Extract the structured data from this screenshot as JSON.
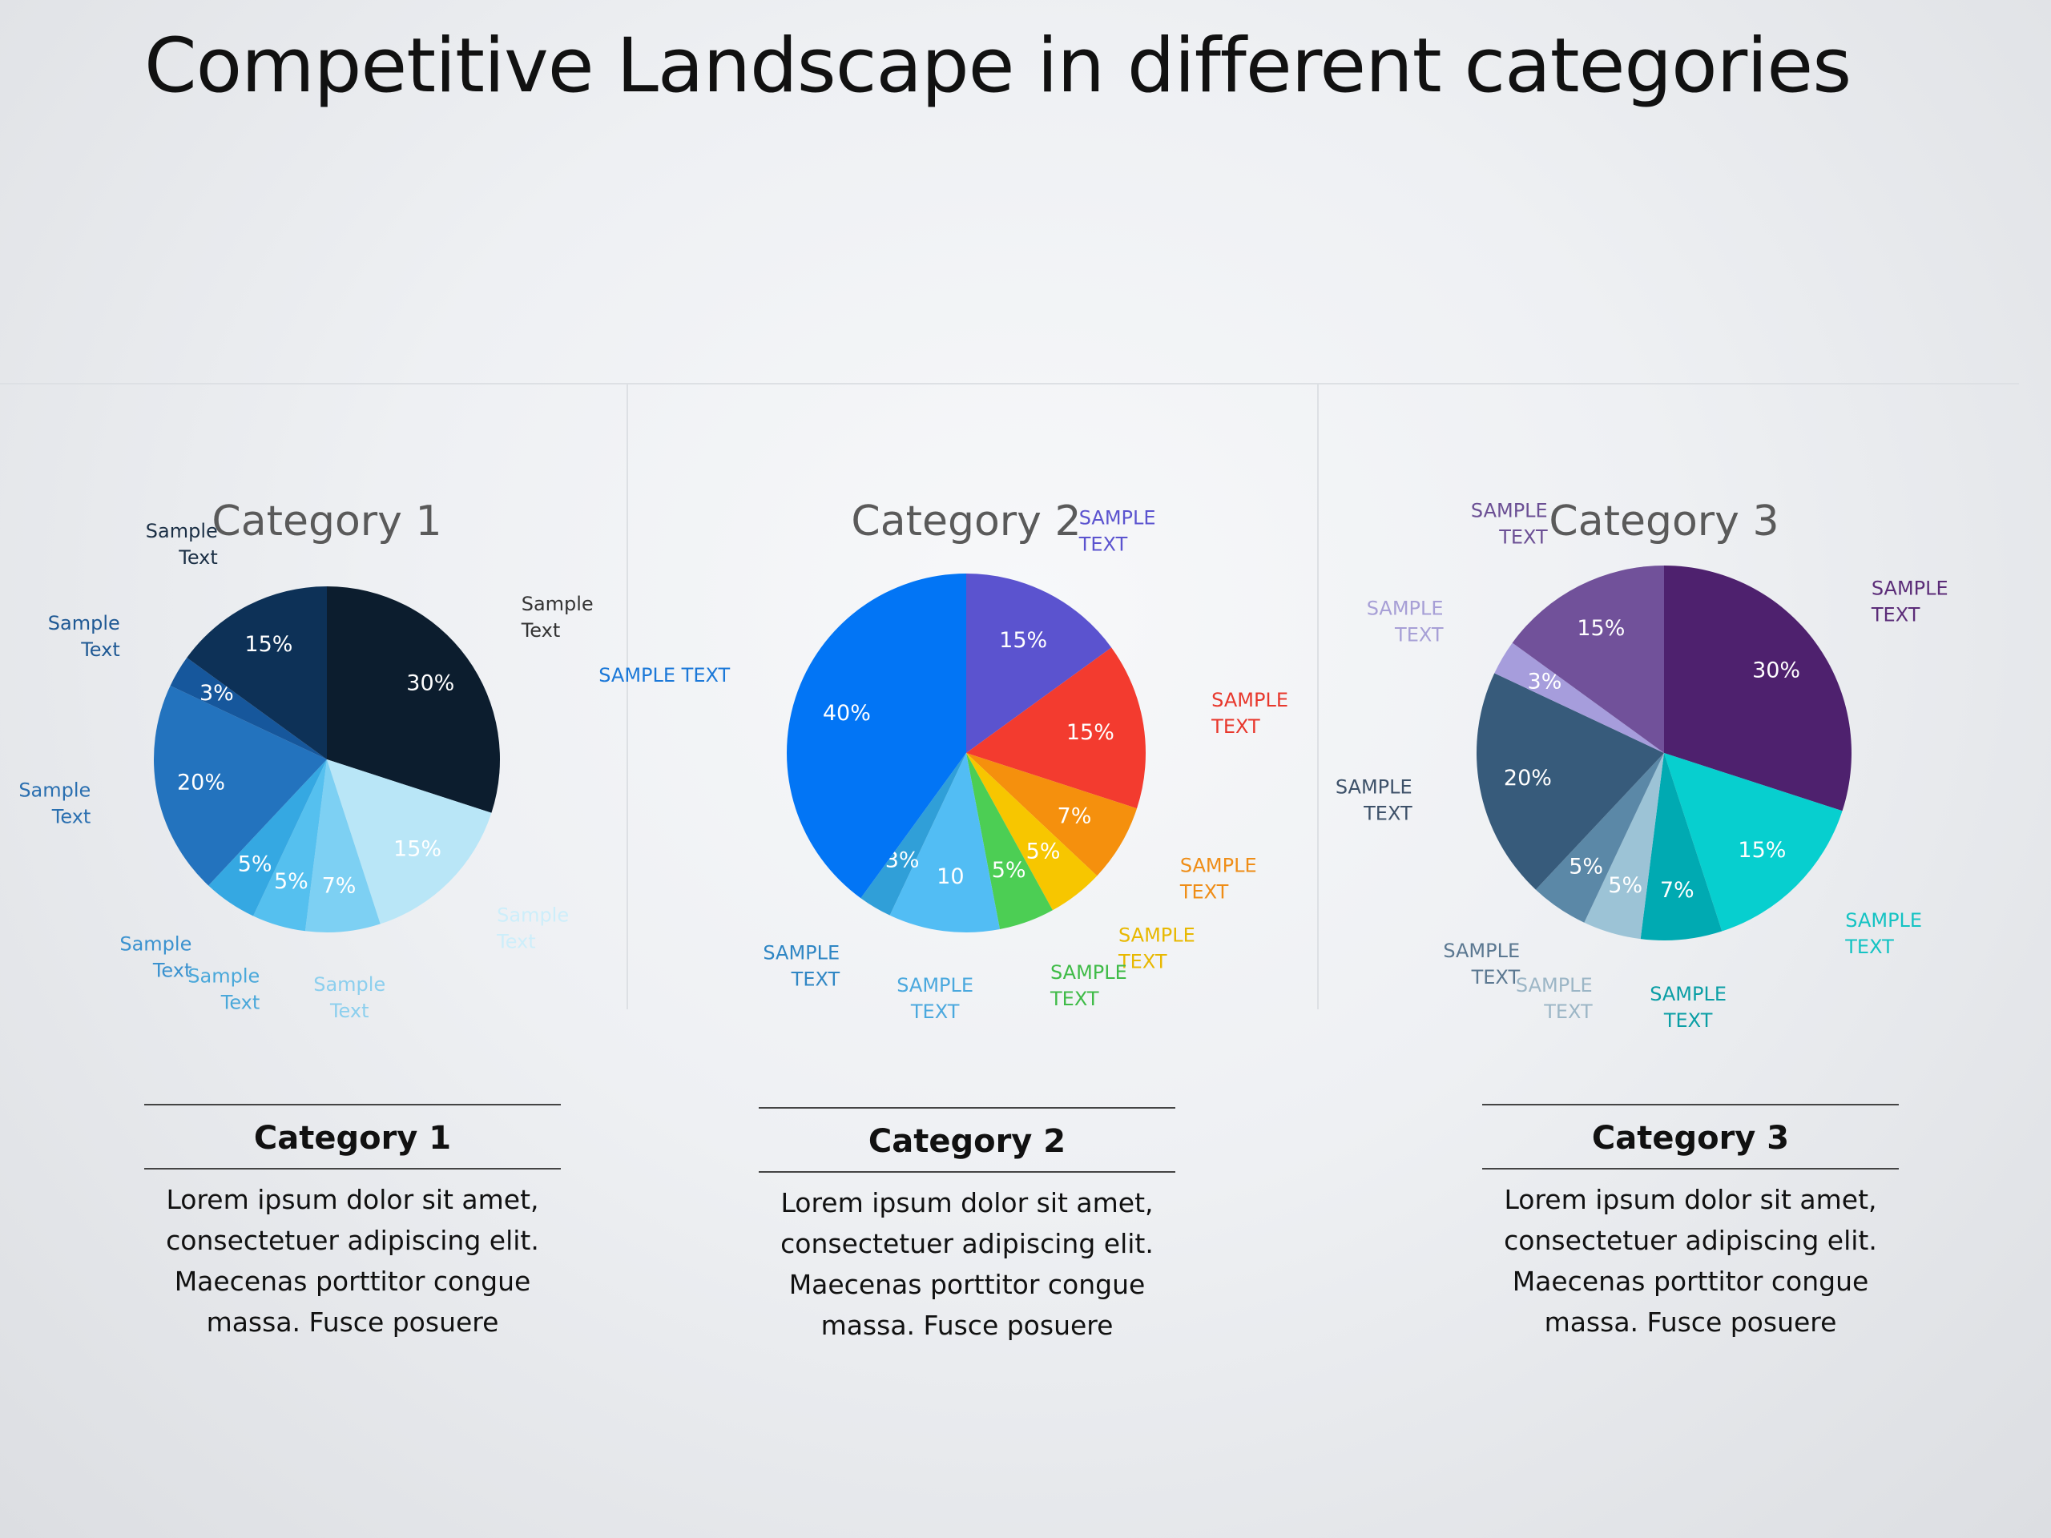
{
  "title": "Competitive Landscape in different categories",
  "chart_data": [
    {
      "type": "pie",
      "title": "Category 1",
      "slices": [
        {
          "value": 30,
          "label": "30%",
          "outer_label": [
            "Sample",
            "Text"
          ],
          "color": "#0c1d2e",
          "label_color": "#333333"
        },
        {
          "value": 15,
          "label": "15%",
          "outer_label": [
            "Sample",
            "Text"
          ],
          "color": "#b9e6f7",
          "label_color": "#cdeefa"
        },
        {
          "value": 7,
          "label": "7%",
          "outer_label": [
            "Sample",
            "Text"
          ],
          "color": "#7dd0f3",
          "label_color": "#8ccfee"
        },
        {
          "value": 5,
          "label": "5%",
          "outer_label": [
            "Sample",
            "Text"
          ],
          "color": "#55c0ef",
          "label_color": "#4aa8da"
        },
        {
          "value": 5,
          "label": "5%",
          "outer_label": [
            "Sample",
            "Text"
          ],
          "color": "#35a8e2",
          "label_color": "#3b92cf"
        },
        {
          "value": 20,
          "label": "20%",
          "outer_label": [
            "Sample",
            "Text"
          ],
          "color": "#2373be",
          "label_color": "#2a6fb0"
        },
        {
          "value": 3,
          "label": "3%",
          "outer_label": [
            "Sample",
            "Text"
          ],
          "color": "#16579c",
          "label_color": "#1f5994"
        },
        {
          "value": 15,
          "label": "15%",
          "outer_label": [
            "Sample",
            "Text"
          ],
          "color": "#0d3157",
          "label_color": "#1b2f45"
        }
      ]
    },
    {
      "type": "pie",
      "title": "Category 2",
      "slices": [
        {
          "value": 15,
          "label": "15%",
          "outer_label": [
            "SAMPLE",
            "TEXT"
          ],
          "color": "#5b53cf",
          "label_color": "#5b53cf"
        },
        {
          "value": 15,
          "label": "15%",
          "outer_label": [
            "SAMPLE",
            "TEXT"
          ],
          "color": "#f33b2f",
          "label_color": "#e8372c"
        },
        {
          "value": 7,
          "label": "7%",
          "outer_label": [
            "SAMPLE",
            "TEXT"
          ],
          "color": "#f5900d",
          "label_color": "#ef8d16"
        },
        {
          "value": 5,
          "label": "5%",
          "outer_label": [
            "SAMPLE",
            "TEXT"
          ],
          "color": "#f7c600",
          "label_color": "#e8b800"
        },
        {
          "value": 5,
          "label": "5%",
          "outer_label": [
            "SAMPLE",
            "TEXT"
          ],
          "color": "#4cce54",
          "label_color": "#3fbb47"
        },
        {
          "value": 10,
          "label": "10",
          "outer_label": [
            "SAMPLE",
            "TEXT"
          ],
          "color": "#52bdf4",
          "label_color": "#4aa8de"
        },
        {
          "value": 3,
          "label": "3%",
          "outer_label": [
            "SAMPLE",
            "TEXT"
          ],
          "color": "#309fd8",
          "label_color": "#2f86c4"
        },
        {
          "value": 40,
          "label": "40%",
          "outer_label": [
            "SAMPLE TEXT"
          ],
          "color": "#0275f5",
          "label_color": "#1b78d8"
        }
      ]
    },
    {
      "type": "pie",
      "title": "Category 3",
      "slices": [
        {
          "value": 30,
          "label": "30%",
          "outer_label": [
            "SAMPLE",
            "TEXT"
          ],
          "color": "#4e216e",
          "label_color": "#5b2c78"
        },
        {
          "value": 15,
          "label": "15%",
          "outer_label": [
            "SAMPLE",
            "TEXT"
          ],
          "color": "#07cfcf",
          "label_color": "#14c3c3"
        },
        {
          "value": 7,
          "label": "7%",
          "outer_label": [
            "SAMPLE",
            "TEXT"
          ],
          "color": "#00aab2",
          "label_color": "#0a9ea5"
        },
        {
          "value": 5,
          "label": "5%",
          "outer_label": [
            "SAMPLE",
            "TEXT"
          ],
          "color": "#9cc3d6",
          "label_color": "#9cb6c6"
        },
        {
          "value": 5,
          "label": "5%",
          "outer_label": [
            "SAMPLE",
            "TEXT"
          ],
          "color": "#5b88a7",
          "label_color": "#5b7891"
        },
        {
          "value": 20,
          "label": "20%",
          "outer_label": [
            "SAMPLE",
            "TEXT"
          ],
          "color": "#375b7b",
          "label_color": "#3d5169"
        },
        {
          "value": 3,
          "label": "3%",
          "outer_label": [
            "SAMPLE",
            "TEXT"
          ],
          "color": "#a69ddc",
          "label_color": "#a79fd6"
        },
        {
          "value": 15,
          "label": "15%",
          "outer_label": [
            "SAMPLE",
            "TEXT"
          ],
          "color": "#71519a",
          "label_color": "#6b4f94"
        }
      ]
    }
  ],
  "cards": [
    {
      "heading": "Category 1",
      "lines": [
        "Lorem ipsum dolor sit amet,",
        "consectetuer adipiscing elit.",
        "Maecenas porttitor congue",
        "massa. Fusce posuere"
      ]
    },
    {
      "heading": "Category 2",
      "lines": [
        "Lorem ipsum dolor sit amet,",
        "consectetuer adipiscing elit.",
        "Maecenas porttitor congue",
        "massa. Fusce posuere"
      ]
    },
    {
      "heading": "Category 3",
      "lines": [
        "Lorem ipsum dolor sit amet,",
        "consectetuer adipiscing elit.",
        "Maecenas porttitor congue",
        "massa. Fusce posuere"
      ]
    }
  ]
}
